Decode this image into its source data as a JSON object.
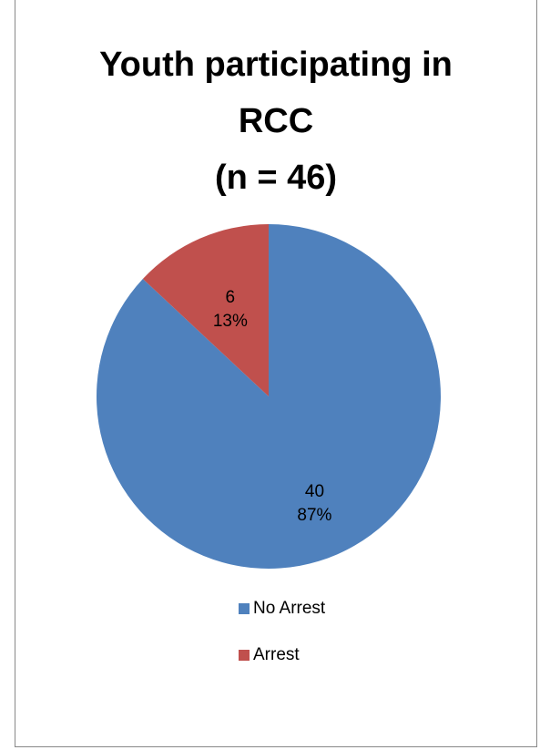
{
  "chart_data": {
    "type": "pie",
    "title_lines": [
      "Youth participating in",
      "RCC",
      "(n = 46)"
    ],
    "slices": [
      {
        "label": "No Arrest",
        "value": 40,
        "percent": "87%",
        "color": "#4F81BD"
      },
      {
        "label": "Arrest",
        "value": 6,
        "percent": "13%",
        "color": "#C0504D"
      }
    ],
    "legend_position": "bottom",
    "start_angle_deg": 0,
    "direction": "clockwise"
  }
}
